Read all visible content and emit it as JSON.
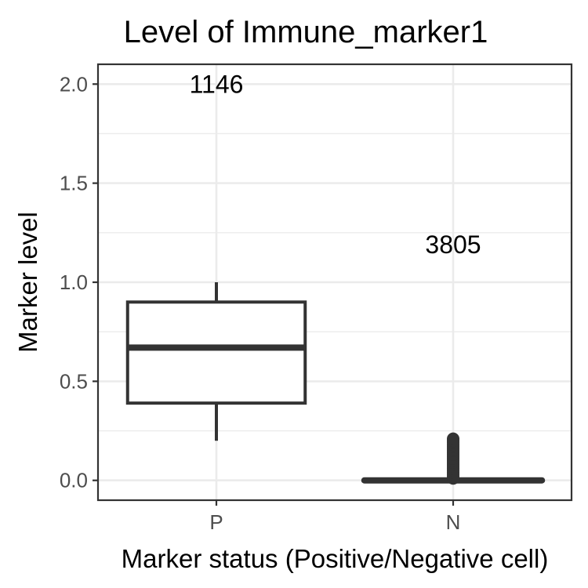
{
  "chart_data": {
    "type": "boxplot",
    "title": "Level of Immune_marker1",
    "xlabel": "Marker status (Positive/Negative cell)",
    "ylabel": "Marker level",
    "ylim": [
      -0.1,
      2.1
    ],
    "y_ticks": [
      0.0,
      0.5,
      1.0,
      1.5,
      2.0
    ],
    "y_tick_labels": [
      "0.0",
      "0.5",
      "1.0",
      "1.5",
      "2.0"
    ],
    "grid": true,
    "categories": [
      "P",
      "N"
    ],
    "boxes": [
      {
        "category": "P",
        "whisker_low": 0.2,
        "q1": 0.39,
        "median": 0.67,
        "q3": 0.9,
        "whisker_high": 1.0,
        "outliers": [],
        "count": "1146",
        "count_y": 2.0
      },
      {
        "category": "N",
        "whisker_low": 0.0,
        "q1": 0.0,
        "median": 0.0,
        "q3": 0.0,
        "whisker_high": 0.0,
        "outliers": [
          0.01,
          0.02,
          0.03,
          0.04,
          0.05,
          0.06,
          0.07,
          0.08,
          0.09,
          0.1,
          0.11,
          0.12,
          0.13,
          0.14,
          0.15,
          0.16,
          0.17,
          0.18,
          0.19,
          0.2,
          0.21
        ],
        "count": "3805",
        "count_y": 1.19
      }
    ]
  }
}
